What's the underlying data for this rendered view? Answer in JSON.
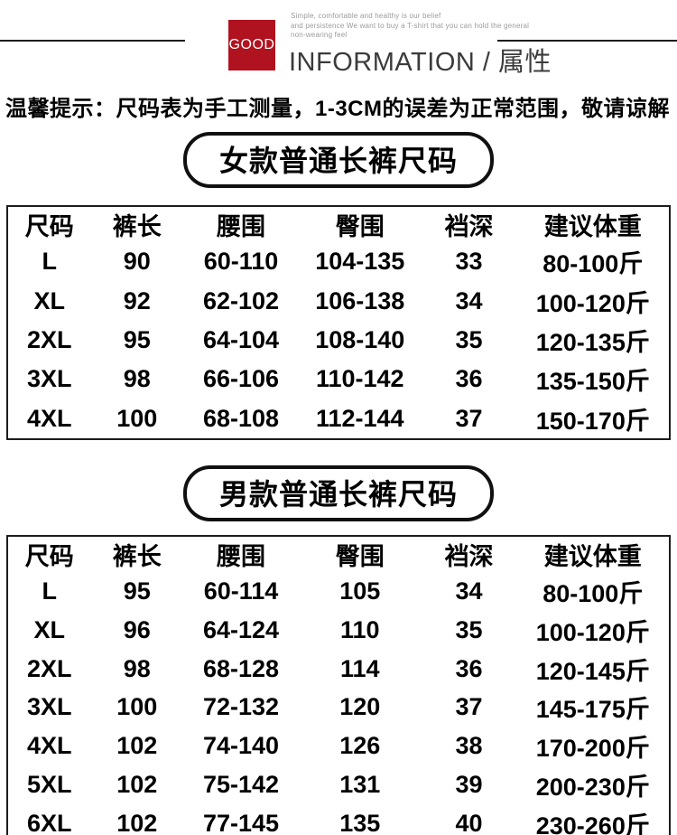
{
  "header": {
    "logo_text": "GOOD",
    "logo_bg_color": "#b0121f",
    "tagline_lines": [
      "Simple, comfortable and healthy is our belief",
      "and persistence We want to buy a T-shirt that you can hold the general",
      "non-wearing feel"
    ],
    "title": "INFORMATION / 属性"
  },
  "notice": "温馨提示：尺码表为手工测量，1-3CM的误差为正常范围，敬请谅解",
  "tables": [
    {
      "title": "女款普通长裤尺码",
      "columns": [
        "尺码",
        "裤长",
        "腰围",
        "臀围",
        "裆深",
        "建议体重"
      ],
      "rows": [
        [
          "L",
          "90",
          "60-110",
          "104-135",
          "33",
          "80-100斤"
        ],
        [
          "XL",
          "92",
          "62-102",
          "106-138",
          "34",
          "100-120斤"
        ],
        [
          "2XL",
          "95",
          "64-104",
          "108-140",
          "35",
          "120-135斤"
        ],
        [
          "3XL",
          "98",
          "66-106",
          "110-142",
          "36",
          "135-150斤"
        ],
        [
          "4XL",
          "100",
          "68-108",
          "112-144",
          "37",
          "150-170斤"
        ]
      ]
    },
    {
      "title": "男款普通长裤尺码",
      "columns": [
        "尺码",
        "裤长",
        "腰围",
        "臀围",
        "裆深",
        "建议体重"
      ],
      "rows": [
        [
          "L",
          "95",
          "60-114",
          "105",
          "34",
          "80-100斤"
        ],
        [
          "XL",
          "96",
          "64-124",
          "110",
          "35",
          "100-120斤"
        ],
        [
          "2XL",
          "98",
          "68-128",
          "114",
          "36",
          "120-145斤"
        ],
        [
          "3XL",
          "100",
          "72-132",
          "120",
          "37",
          "145-175斤"
        ],
        [
          "4XL",
          "102",
          "74-140",
          "126",
          "38",
          "170-200斤"
        ],
        [
          "5XL",
          "102",
          "75-142",
          "131",
          "39",
          "200-230斤"
        ],
        [
          "6XL",
          "102",
          "77-145",
          "135",
          "40",
          "230-260斤"
        ]
      ]
    }
  ]
}
